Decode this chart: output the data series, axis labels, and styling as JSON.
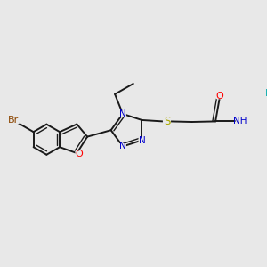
{
  "bg_color": "#e8e8e8",
  "bond_color": "#1a1a1a",
  "bond_width": 1.4,
  "atom_colors": {
    "Br": "#8B4500",
    "O": "#FF0000",
    "N": "#0000CC",
    "S": "#AAAA00",
    "F": "#00AAAA",
    "C": "#1a1a1a",
    "H": "#1a1a1a"
  },
  "font_size": 7.5,
  "fig_size": [
    3.0,
    3.0
  ],
  "dpi": 100
}
